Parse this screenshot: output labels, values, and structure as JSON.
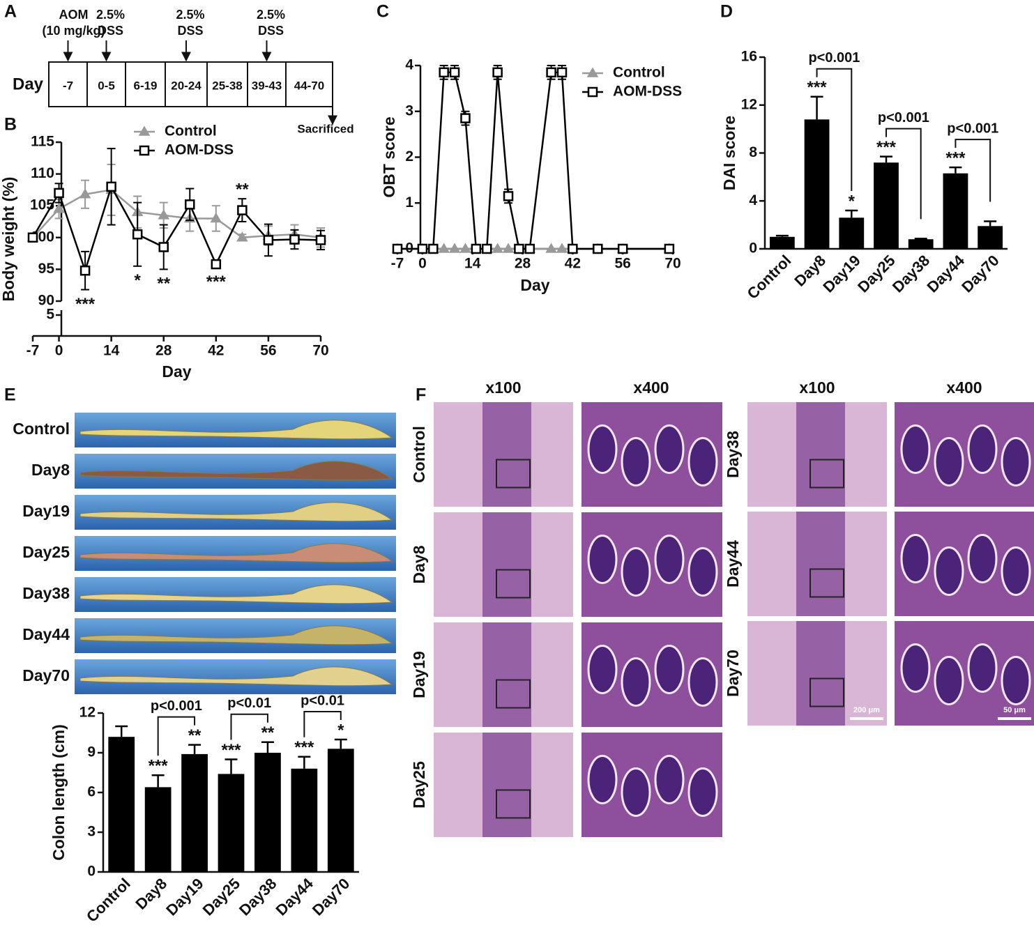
{
  "panel_labels": [
    "A",
    "B",
    "C",
    "D",
    "E",
    "F"
  ],
  "timeline": {
    "row_label": "Day",
    "periods": [
      "-7",
      "0-5",
      "6-19",
      "20-24",
      "25-38",
      "39-43",
      "44-70"
    ],
    "events": [
      {
        "lines": [
          "AOM",
          "(10 mg/kg)"
        ]
      },
      {
        "lines": [
          "2.5%",
          "DSS"
        ]
      },
      {
        "lines": [
          "2.5%",
          "DSS"
        ]
      },
      {
        "lines": [
          "2.5%",
          "DSS"
        ]
      }
    ],
    "end_label": "Sacrificed"
  },
  "chart_data": [
    {
      "type": "line",
      "ylabel": "Body weight (%)",
      "xlabel": "Day",
      "x": [
        -7,
        0,
        7,
        14,
        21,
        28,
        35,
        42,
        49,
        56,
        63,
        70
      ],
      "xlim": [
        -7,
        70
      ],
      "xticks": [
        -7,
        0,
        14,
        28,
        42,
        56,
        70
      ],
      "ylim": [
        90,
        115
      ],
      "yticks": [
        90,
        95,
        100,
        105,
        110,
        115
      ],
      "lower_yticks": [
        5
      ],
      "series": [
        {
          "name": "Control",
          "color": "#999999",
          "marker": "triangle",
          "values": [
            100,
            104.5,
            106.8,
            107.5,
            104,
            103.5,
            103,
            103,
            100,
            100.3,
            100.5,
            100
          ],
          "errors": [
            0.3,
            1.5,
            2.2,
            4,
            2.5,
            2,
            2,
            2,
            0.5,
            1.5,
            1.5,
            1.5
          ]
        },
        {
          "name": "AOM-DSS",
          "color": "#000000",
          "marker": "square",
          "values": [
            100,
            107,
            94.8,
            108,
            100.5,
            98.5,
            105.2,
            95.8,
            104.3,
            99.6,
            99.7,
            99.6
          ],
          "errors": [
            0.3,
            1.5,
            3,
            6,
            5,
            3.5,
            2.5,
            0.5,
            1.8,
            2.5,
            1.5,
            1.5
          ]
        }
      ],
      "annotations": [
        {
          "text": "***",
          "x": 7
        },
        {
          "text": "*",
          "x": 21
        },
        {
          "text": "**",
          "x": 28
        },
        {
          "text": "***",
          "x": 42
        },
        {
          "text": "**",
          "x": 49
        }
      ]
    },
    {
      "type": "line",
      "ylabel": "OBT score",
      "xlabel": "Day",
      "x": [
        -7,
        0,
        3,
        6,
        9,
        12,
        15,
        18,
        21,
        24,
        27,
        30,
        36,
        39,
        42,
        49,
        56,
        69
      ],
      "xlim": [
        -7,
        70
      ],
      "xticks": [
        -7,
        0,
        14,
        28,
        42,
        56,
        70
      ],
      "ylim": [
        0,
        4
      ],
      "yticks": [
        0,
        1,
        2,
        3,
        4
      ],
      "series": [
        {
          "name": "Control",
          "color": "#999999",
          "marker": "triangle",
          "values": [
            0,
            0,
            0,
            0,
            0,
            0,
            0,
            0,
            0,
            0,
            0,
            0,
            0,
            0,
            0,
            0,
            0,
            0
          ]
        },
        {
          "name": "AOM-DSS",
          "color": "#000000",
          "marker": "square",
          "values": [
            0,
            0,
            0,
            3.85,
            3.85,
            2.85,
            0,
            0,
            3.85,
            1.15,
            0,
            0,
            3.85,
            3.85,
            0,
            0,
            0,
            0
          ],
          "errors": [
            0,
            0,
            0,
            0.15,
            0.15,
            0.15,
            0,
            0,
            0.15,
            0.15,
            0,
            0,
            0.15,
            0.15,
            0,
            0,
            0,
            0
          ]
        }
      ]
    },
    {
      "type": "bar",
      "ylabel": "DAI score",
      "categories": [
        "Control",
        "Day8",
        "Day19",
        "Day25",
        "Day38",
        "Day44",
        "Day70"
      ],
      "values": [
        1.0,
        10.8,
        2.6,
        7.2,
        0.8,
        6.3,
        1.9
      ],
      "errors": [
        0.1,
        1.9,
        0.6,
        0.5,
        0.05,
        0.5,
        0.4
      ],
      "color": "#000000",
      "ylim": [
        0,
        16
      ],
      "yticks": [
        0,
        4,
        8,
        12,
        16
      ],
      "annotations": [
        null,
        "***",
        "*",
        "***",
        null,
        "***",
        null
      ],
      "brackets": [
        {
          "from": 1,
          "to": 2,
          "label": "p<0.001"
        },
        {
          "from": 3,
          "to": 4,
          "label": "p<0.001"
        },
        {
          "from": 5,
          "to": 6,
          "label": "p<0.001"
        }
      ]
    },
    {
      "type": "bar",
      "ylabel": "Colon length (cm)",
      "categories": [
        "Control",
        "Day8",
        "Day19",
        "Day25",
        "Day38",
        "Day44",
        "Day70"
      ],
      "values": [
        10.2,
        6.4,
        8.9,
        7.4,
        9.0,
        7.8,
        9.3
      ],
      "errors": [
        0.8,
        0.9,
        0.7,
        1.1,
        0.8,
        0.9,
        0.7
      ],
      "color": "#000000",
      "ylim": [
        0,
        12
      ],
      "yticks": [
        0,
        3,
        6,
        9,
        12
      ],
      "annotations": [
        null,
        "***",
        "**",
        "***",
        "**",
        "***",
        "*"
      ],
      "brackets": [
        {
          "from": 1,
          "to": 2,
          "label": "p<0.001"
        },
        {
          "from": 3,
          "to": 4,
          "label": "p<0.01"
        },
        {
          "from": 5,
          "to": 6,
          "label": "p<0.01"
        }
      ]
    }
  ],
  "photos": {
    "labels": [
      "Control",
      "Day8",
      "Day19",
      "Day25",
      "Day38",
      "Day44",
      "Day70"
    ]
  },
  "histology": {
    "magnifications": [
      "x100",
      "x400",
      "x100",
      "x400"
    ],
    "left_rows": [
      "Control",
      "Day8",
      "Day19",
      "Day25"
    ],
    "right_rows": [
      "Day38",
      "Day44",
      "Day70"
    ],
    "scale_bars": [
      "200 μm",
      "50 μm"
    ]
  }
}
